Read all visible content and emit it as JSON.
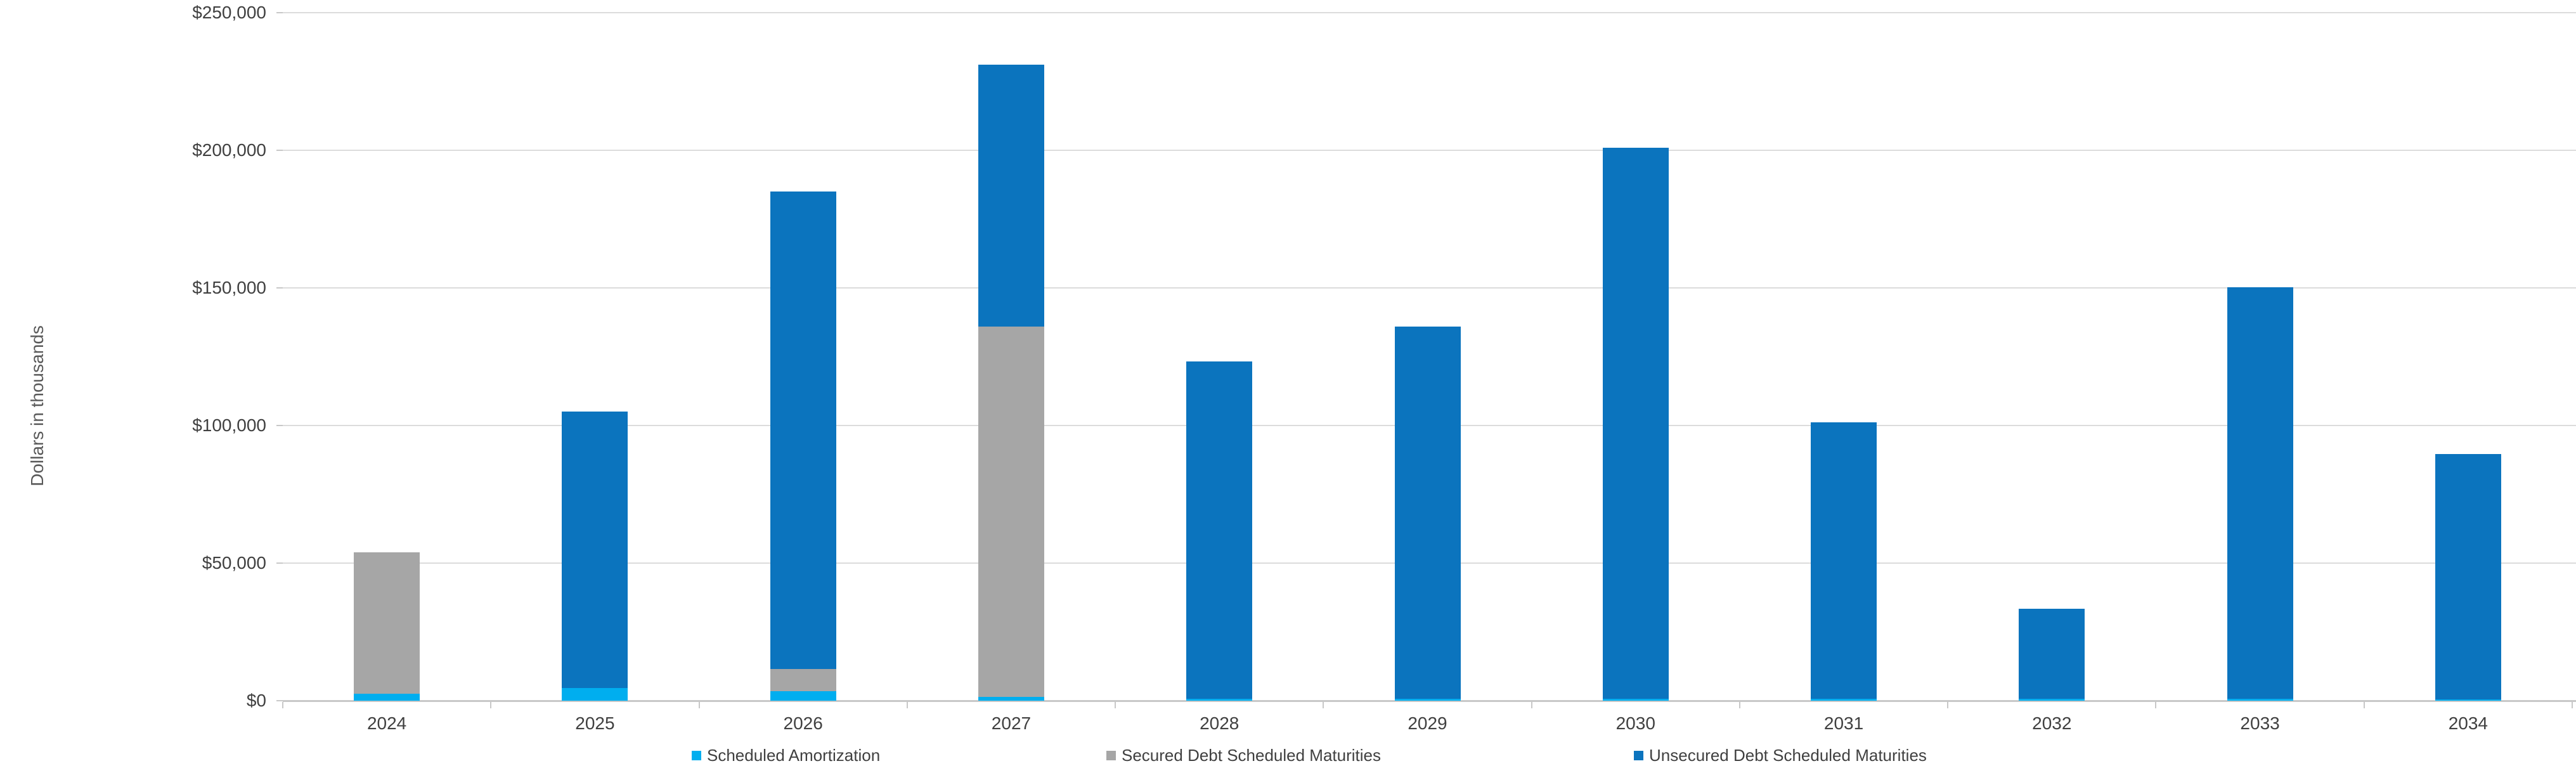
{
  "chart_data": {
    "type": "bar",
    "stacked": true,
    "title": "",
    "xlabel": "",
    "ylabel": "Dollars in thousands",
    "units": "thousands of dollars",
    "ylim": [
      0,
      250000
    ],
    "ytick_step": 50000,
    "ytick_labels": [
      "$0",
      "$50,000",
      "$100,000",
      "$150,000",
      "$200,000",
      "$250,000"
    ],
    "grid": true,
    "legend_position": "bottom",
    "categories": [
      "2024",
      "2025",
      "2026",
      "2027",
      "2028",
      "2029",
      "2030",
      "2031",
      "2032",
      "2033",
      "2034"
    ],
    "series": [
      {
        "name": "Scheduled Amortization",
        "color": "#00AEEF",
        "values": [
          2500,
          4500,
          3500,
          1400,
          800,
          800,
          800,
          800,
          800,
          800,
          500
        ]
      },
      {
        "name": "Secured Debt Scheduled Maturities",
        "color": "#A6A6A6",
        "values": [
          51500,
          0,
          8000,
          134600,
          0,
          0,
          0,
          0,
          0,
          0,
          0
        ]
      },
      {
        "name": "Unsecured Debt Scheduled Maturities",
        "color": "#0B74BE",
        "values": [
          0,
          100500,
          173500,
          95000,
          122400,
          135200,
          200200,
          100400,
          32700,
          149500,
          89200
        ]
      }
    ],
    "approx_totals": [
      54000,
      105000,
      185000,
      231000,
      123200,
      136000,
      201000,
      101200,
      33500,
      150300,
      89700
    ],
    "colors": {
      "gridline": "#DCDCDC",
      "axis_line": "#C8C8C8",
      "tick_label": "#404040",
      "axis_title": "#595959",
      "background": "#FFFFFF"
    }
  }
}
